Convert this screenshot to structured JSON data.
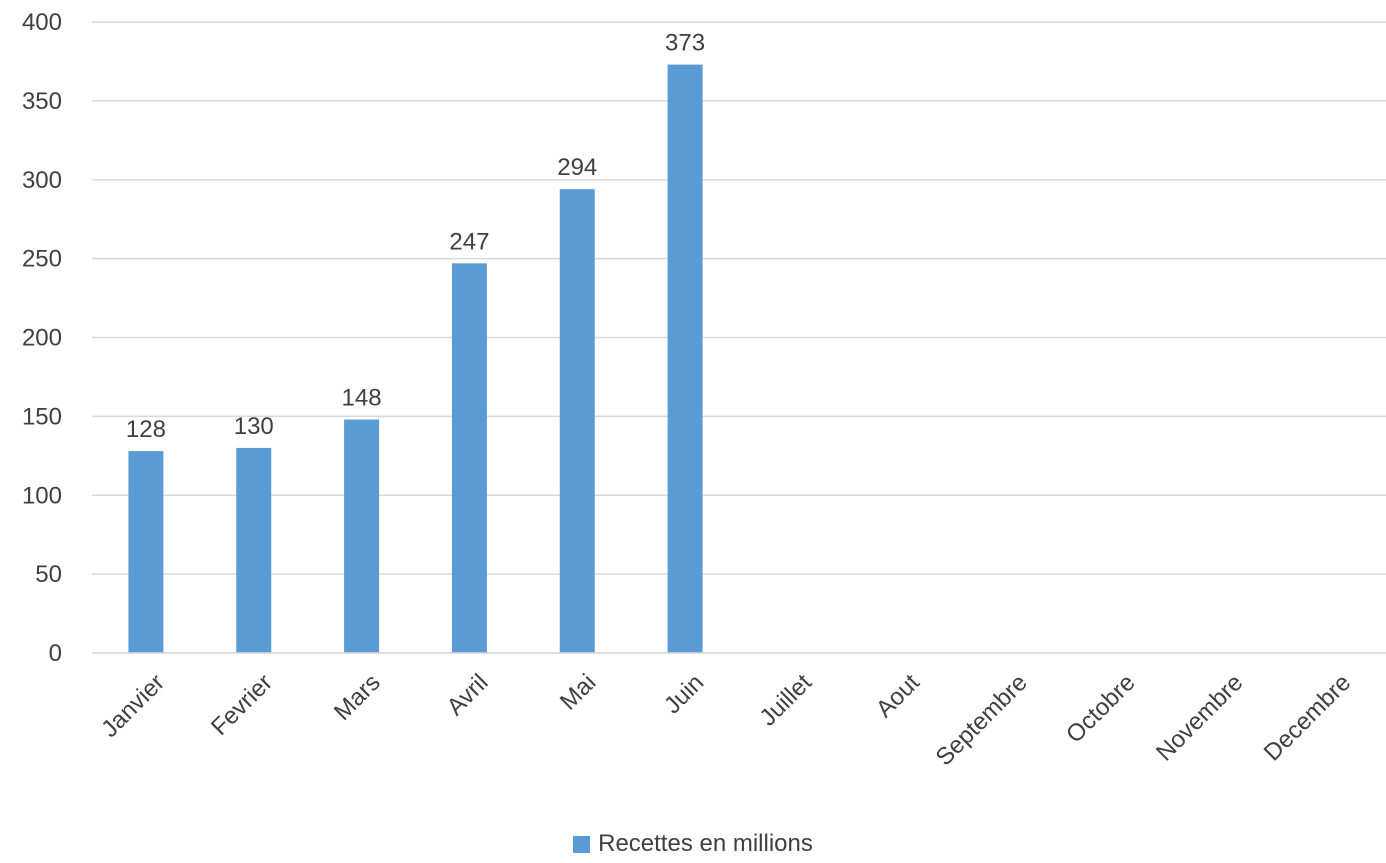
{
  "chart_data": {
    "type": "bar",
    "categories": [
      "Janvier",
      "Fevrier",
      "Mars",
      "Avril",
      "Mai",
      "Juin",
      "Juillet",
      "Aout",
      "Septembre",
      "Octobre",
      "Novembre",
      "Decembre"
    ],
    "series": [
      {
        "name": "Recettes en millions",
        "values": [
          128,
          130,
          148,
          247,
          294,
          373,
          null,
          null,
          null,
          null,
          null,
          null
        ],
        "color": "#5b9bd5"
      }
    ],
    "data_labels": [
      "128",
      "130",
      "148",
      "247",
      "294",
      "373"
    ],
    "ylim": [
      0,
      400
    ],
    "yticks": [
      0,
      50,
      100,
      150,
      200,
      250,
      300,
      350,
      400
    ],
    "grid": true,
    "legend_position": "bottom",
    "title": "",
    "xlabel": "",
    "ylabel": ""
  },
  "legend": {
    "label": "Recettes en millions"
  },
  "colors": {
    "bar": "#5b9bd5",
    "grid": "#d9d9d9",
    "text": "#404040"
  }
}
